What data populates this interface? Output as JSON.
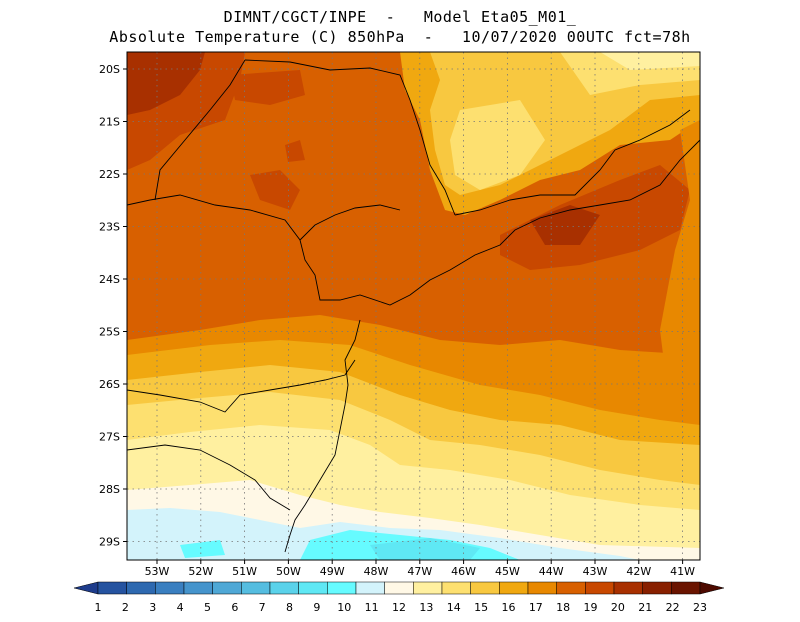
{
  "header": {
    "title_line1": "DIMNT/CGCT/INPE  -   Model Eta05_M01_",
    "title_line2": "Absolute Temperature (C) 850hPa  -   10/07/2020 00UTC fct=78h"
  },
  "map": {
    "variable": "Absolute Temperature (C) 850hPa",
    "lat_labels": [
      "20S",
      "21S",
      "22S",
      "23S",
      "24S",
      "25S",
      "26S",
      "27S",
      "28S",
      "29S"
    ],
    "lon_labels": [
      "53W",
      "52W",
      "51W",
      "50W",
      "49W",
      "48W",
      "47W",
      "46W",
      "45W",
      "44W",
      "43W",
      "42W",
      "41W"
    ],
    "gridlines": "dotted",
    "fields": [
      {
        "region": "north-west interior",
        "value_range": "19-21"
      },
      {
        "region": "coastal belt 23S-26S",
        "value_range": "18-19"
      },
      {
        "region": "north-east highlands (22S, 46W)",
        "value_range": "14-16"
      },
      {
        "region": "south 27S-28S",
        "value_range": "12-15"
      },
      {
        "region": "far south 29S",
        "value_range": "9-11"
      },
      {
        "region": "offshore south-east",
        "value_range": "16-18"
      }
    ]
  },
  "colorbar": {
    "labels": [
      "1",
      "2",
      "3",
      "4",
      "5",
      "6",
      "7",
      "8",
      "9",
      "10",
      "11",
      "12",
      "13",
      "14",
      "15",
      "16",
      "17",
      "18",
      "19",
      "20",
      "21",
      "22",
      "23"
    ],
    "colors": [
      "#1e3c8c",
      "#2553a0",
      "#2e69b0",
      "#3a7fc0",
      "#4594cc",
      "#4fa8d6",
      "#55bde0",
      "#5ad2ea",
      "#5fe8f4",
      "#66fbff",
      "#d3f3fb",
      "#fff8e6",
      "#fff0a0",
      "#fde070",
      "#f8c840",
      "#f0a810",
      "#e88800",
      "#d86000",
      "#c84800",
      "#a83000",
      "#882000",
      "#6a1400",
      "#4d0a00"
    ]
  }
}
